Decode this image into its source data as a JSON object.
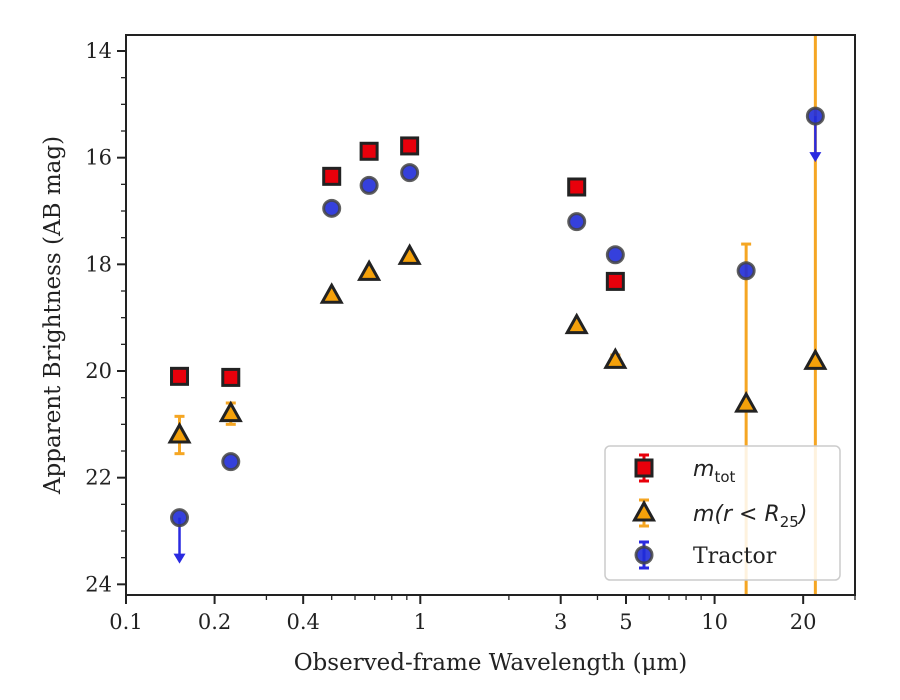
{
  "chart_data": {
    "type": "scatter",
    "xlabel": "Observed-frame Wavelength (μm)",
    "ylabel": "Apparent Brightness (AB mag)",
    "xscale": "log",
    "xlim": [
      0.1,
      30
    ],
    "ylim": [
      24.2,
      13.7
    ],
    "y_inverted": true,
    "x_ticks": [
      0.1,
      0.2,
      0.4,
      1,
      3,
      5,
      10,
      20
    ],
    "x_tick_labels": [
      "0.1",
      "0.2",
      "0.4",
      "1",
      "3",
      "5",
      "10",
      "20"
    ],
    "y_ticks": [
      14,
      16,
      18,
      20,
      22,
      24
    ],
    "y_tick_labels": [
      "14",
      "16",
      "18",
      "20",
      "22",
      "24"
    ],
    "grid": false,
    "legend_position": "bottom-right",
    "series": [
      {
        "name": "m_tot",
        "legend": {
          "main": "m",
          "sub": "tot"
        },
        "marker": "square",
        "face_color": "#e8000b",
        "edge_color": "#222222",
        "error_color": "#e8000b",
        "points": [
          {
            "x": 0.152,
            "y": 20.1
          },
          {
            "x": 0.227,
            "y": 20.12
          },
          {
            "x": 0.5,
            "y": 16.35
          },
          {
            "x": 0.67,
            "y": 15.88
          },
          {
            "x": 0.92,
            "y": 15.78
          },
          {
            "x": 3.4,
            "y": 16.55
          },
          {
            "x": 4.6,
            "y": 18.32
          }
        ]
      },
      {
        "name": "m(r<R25)",
        "legend": {
          "main": "m(r < R",
          "sub": "25",
          "tail": ")"
        },
        "marker": "triangle",
        "face_color": "#f5a10a",
        "edge_color": "#222222",
        "error_color": "#f5a623",
        "points": [
          {
            "x": 0.152,
            "y": 21.2,
            "err": 0.35
          },
          {
            "x": 0.227,
            "y": 20.8,
            "err": 0.2
          },
          {
            "x": 0.5,
            "y": 18.58
          },
          {
            "x": 0.67,
            "y": 18.15
          },
          {
            "x": 0.92,
            "y": 17.85
          },
          {
            "x": 3.4,
            "y": 19.15
          },
          {
            "x": 4.6,
            "y": 19.8,
            "err": 0.1
          },
          {
            "x": 12.8,
            "y": 20.62,
            "err_upper": 3.0,
            "err_lower_to": 24.2
          },
          {
            "x": 22.0,
            "y": 19.82,
            "err_full": true
          }
        ]
      },
      {
        "name": "Tractor",
        "legend": {
          "main": "Tractor"
        },
        "marker": "circle",
        "face_color": "#1f2bd8",
        "edge_color": "#444444",
        "error_color": "#2a2ae0",
        "points": [
          {
            "x": 0.152,
            "y": 22.75,
            "upper_limit": true
          },
          {
            "x": 0.227,
            "y": 21.7
          },
          {
            "x": 0.5,
            "y": 16.95
          },
          {
            "x": 0.67,
            "y": 16.52
          },
          {
            "x": 0.92,
            "y": 16.28
          },
          {
            "x": 3.4,
            "y": 17.2
          },
          {
            "x": 4.6,
            "y": 17.82
          },
          {
            "x": 12.8,
            "y": 18.12
          },
          {
            "x": 22.0,
            "y": 15.22,
            "upper_limit": true
          }
        ]
      }
    ]
  }
}
